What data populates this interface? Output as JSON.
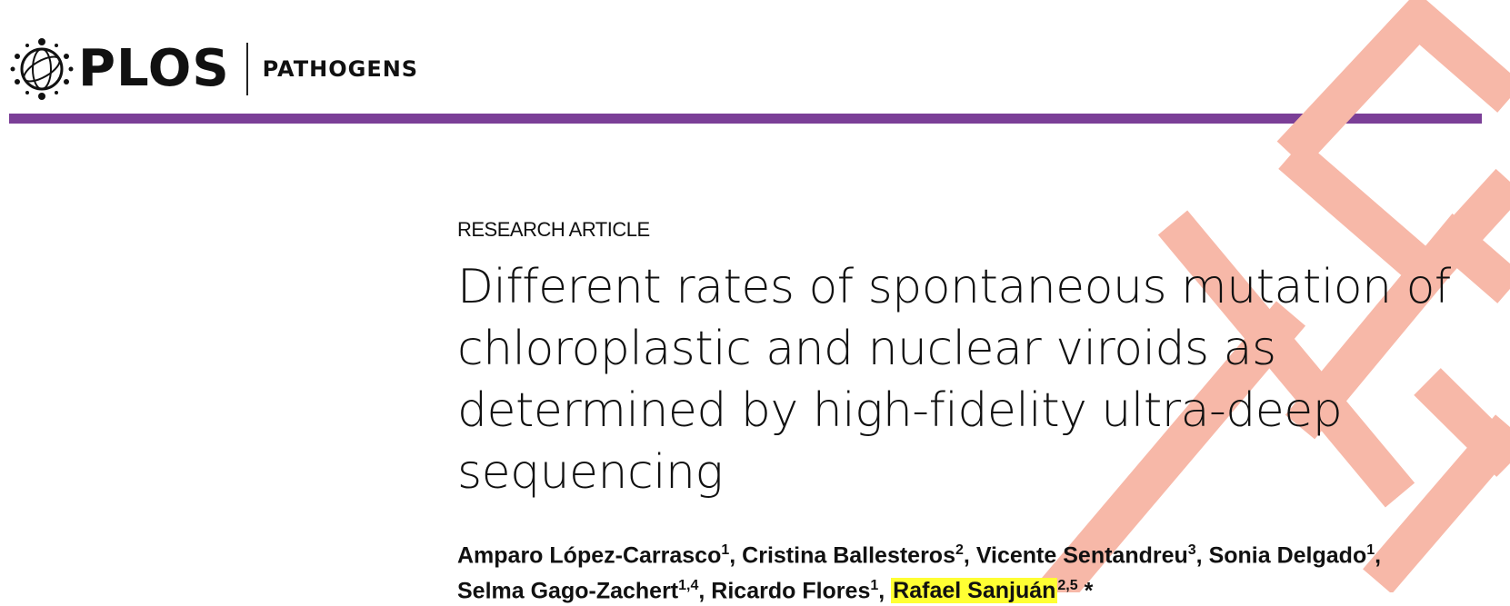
{
  "header": {
    "logo_text": "PLOS",
    "journal": "PATHOGENS",
    "rule_color": "#7b3f97",
    "logo_icon": "plos-globe-icon"
  },
  "watermark": {
    "text": "TED",
    "color": "#f7b8a8"
  },
  "article": {
    "type": "RESEARCH ARTICLE",
    "title_lines": [
      "Different rates of spontaneous mutation of",
      "chloroplastic and nuclear viroids as",
      "determined by high-fidelity ultra-deep",
      "sequencing"
    ],
    "authors": [
      {
        "name": "Amparo López-Carrasco",
        "sup": "1",
        "sep": ", "
      },
      {
        "name": "Cristina Ballesteros",
        "sup": "2",
        "sep": ", "
      },
      {
        "name": "Vicente Sentandreu",
        "sup": "3",
        "sep": ", "
      },
      {
        "name": "Sonia Delgado",
        "sup": "1",
        "sep": ","
      },
      {
        "name": "Selma Gago-Zachert",
        "sup": "1,4",
        "sep": ", "
      },
      {
        "name": "Ricardo Flores",
        "sup": "1",
        "sep": ", "
      },
      {
        "name": "Rafael Sanjuán",
        "sup": "2,5",
        "sep": " *"
      }
    ],
    "highlight_color": "#ffff33"
  }
}
